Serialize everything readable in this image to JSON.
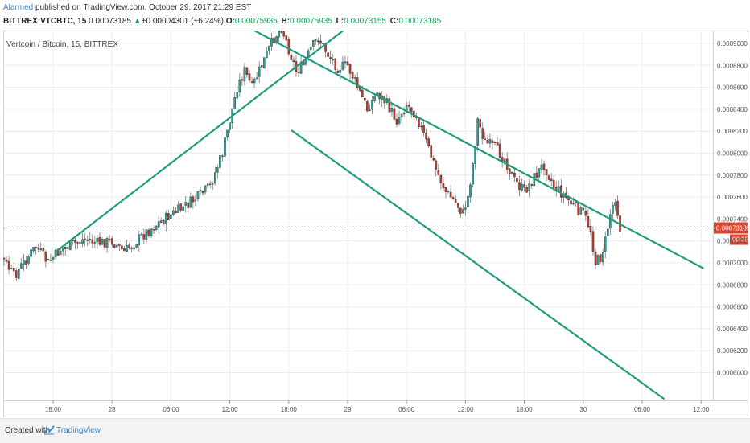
{
  "header": {
    "author": "Alarmed",
    "published_text": " published on TradingView.com, October 29, 2017 21:29 EST",
    "symbol": "BITTREX:VTCBTC, 15",
    "last": "0.00073185",
    "change_arrow": "▲",
    "change": "+0.00004301 (+6.24%)",
    "ohlc": [
      {
        "k": "O:",
        "v": "0.00075935"
      },
      {
        "k": "H:",
        "v": "0.00075935"
      },
      {
        "k": "L:",
        "v": "0.00073155"
      },
      {
        "k": "C:",
        "v": "0.00073185"
      }
    ]
  },
  "chart_data": {
    "type": "candlestick",
    "title": "Vertcoin / Bitcoin, 15, BITTREX",
    "x_ticks": [
      "18:00",
      "28",
      "06:00",
      "12:00",
      "18:00",
      "29",
      "06:00",
      "12:00",
      "18:00",
      "30",
      "06:00",
      "12:00"
    ],
    "y_ticks": [
      "0.00090000",
      "0.00088000",
      "0.00086000",
      "0.00084000",
      "0.00082000",
      "0.00080000",
      "0.00078000",
      "0.00076000",
      "0.00074000",
      "0.00072000",
      "0.00070000",
      "0.00068000",
      "0.00066000",
      "0.00064000",
      "0.00062000",
      "0.00060000"
    ],
    "y_range": [
      0.000575,
      0.00092
    ],
    "current_price_label": "0.00073185",
    "countdown_label": "00:35",
    "colors": {
      "up": "#26a69a",
      "down": "#c0392b",
      "line": "#1e9c7c",
      "price_line": "#e05a4a",
      "grid": "#ececec"
    },
    "trend_lines": [
      {
        "from": [
          "27 18:15",
          0.00071
        ],
        "to": [
          "29 00:45",
          0.00092
        ]
      },
      {
        "from": [
          "28 12:45",
          0.00092
        ],
        "to": [
          "30 12:15",
          0.000695
        ]
      },
      {
        "from": [
          "28 18:15",
          0.000821
        ],
        "to": [
          "30 08:15",
          0.000576
        ]
      }
    ],
    "price_path": [
      [
        "27 10:15",
        0.000735
      ],
      [
        "27 11:00",
        0.000722
      ],
      [
        "27 11:45",
        0.000715
      ],
      [
        "27 13:00",
        0.000702
      ],
      [
        "27 14:00",
        0.000688
      ],
      [
        "27 15:00",
        0.0007
      ],
      [
        "27 16:15",
        0.000715
      ],
      [
        "27 17:30",
        0.0007
      ],
      [
        "27 18:45",
        0.000712
      ],
      [
        "27 20:00",
        0.000717
      ],
      [
        "27 21:15",
        0.000722
      ],
      [
        "27 22:30",
        0.000718
      ],
      [
        "28 00:00",
        0.00072
      ],
      [
        "28 01:15",
        0.00071
      ],
      [
        "28 02:30",
        0.00072
      ],
      [
        "28 03:45",
        0.00073
      ],
      [
        "28 05:00",
        0.000738
      ],
      [
        "28 06:15",
        0.000745
      ],
      [
        "28 07:30",
        0.000752
      ],
      [
        "28 08:45",
        0.00076
      ],
      [
        "28 10:00",
        0.00077
      ],
      [
        "28 11:15",
        0.0008
      ],
      [
        "28 12:00",
        0.00083
      ],
      [
        "28 12:45",
        0.00086
      ],
      [
        "28 13:30",
        0.000875
      ],
      [
        "28 14:15",
        0.00086
      ],
      [
        "28 15:00",
        0.000875
      ],
      [
        "28 15:45",
        0.00089
      ],
      [
        "28 16:30",
        0.000905
      ],
      [
        "28 17:15",
        0.000915
      ],
      [
        "28 18:00",
        0.000895
      ],
      [
        "28 18:45",
        0.000875
      ],
      [
        "28 19:30",
        0.00088
      ],
      [
        "28 20:15",
        0.000895
      ],
      [
        "28 21:00",
        0.000905
      ],
      [
        "28 22:00",
        0.00089
      ],
      [
        "28 23:00",
        0.000878
      ],
      [
        "29 00:00",
        0.00088
      ],
      [
        "29 01:00",
        0.00086
      ],
      [
        "29 02:00",
        0.00084
      ],
      [
        "29 03:00",
        0.000855
      ],
      [
        "29 04:00",
        0.000845
      ],
      [
        "29 05:00",
        0.00083
      ],
      [
        "29 06:00",
        0.000845
      ],
      [
        "29 07:00",
        0.000835
      ],
      [
        "29 08:00",
        0.00081
      ],
      [
        "29 09:00",
        0.000785
      ],
      [
        "29 10:00",
        0.000765
      ],
      [
        "29 11:00",
        0.000755
      ],
      [
        "29 11:45",
        0.000745
      ],
      [
        "29 12:15",
        0.00076
      ],
      [
        "29 12:45",
        0.00079
      ],
      [
        "29 13:15",
        0.00083
      ],
      [
        "29 14:00",
        0.00081
      ],
      [
        "29 15:00",
        0.000805
      ],
      [
        "29 16:00",
        0.000795
      ],
      [
        "29 17:00",
        0.000775
      ],
      [
        "29 18:00",
        0.000765
      ],
      [
        "29 19:00",
        0.000778
      ],
      [
        "29 20:00",
        0.00079
      ],
      [
        "29 21:00",
        0.00077
      ],
      [
        "29 22:00",
        0.000762
      ],
      [
        "29 23:00",
        0.000752
      ],
      [
        "30 00:00",
        0.000745
      ],
      [
        "30 00:45",
        0.00073
      ],
      [
        "30 01:15",
        0.0007
      ],
      [
        "30 01:45",
        0.000705
      ],
      [
        "30 02:15",
        0.00072
      ],
      [
        "30 02:45",
        0.000745
      ],
      [
        "30 03:15",
        0.00076
      ],
      [
        "30 03:45",
        0.000732
      ]
    ]
  }
}
